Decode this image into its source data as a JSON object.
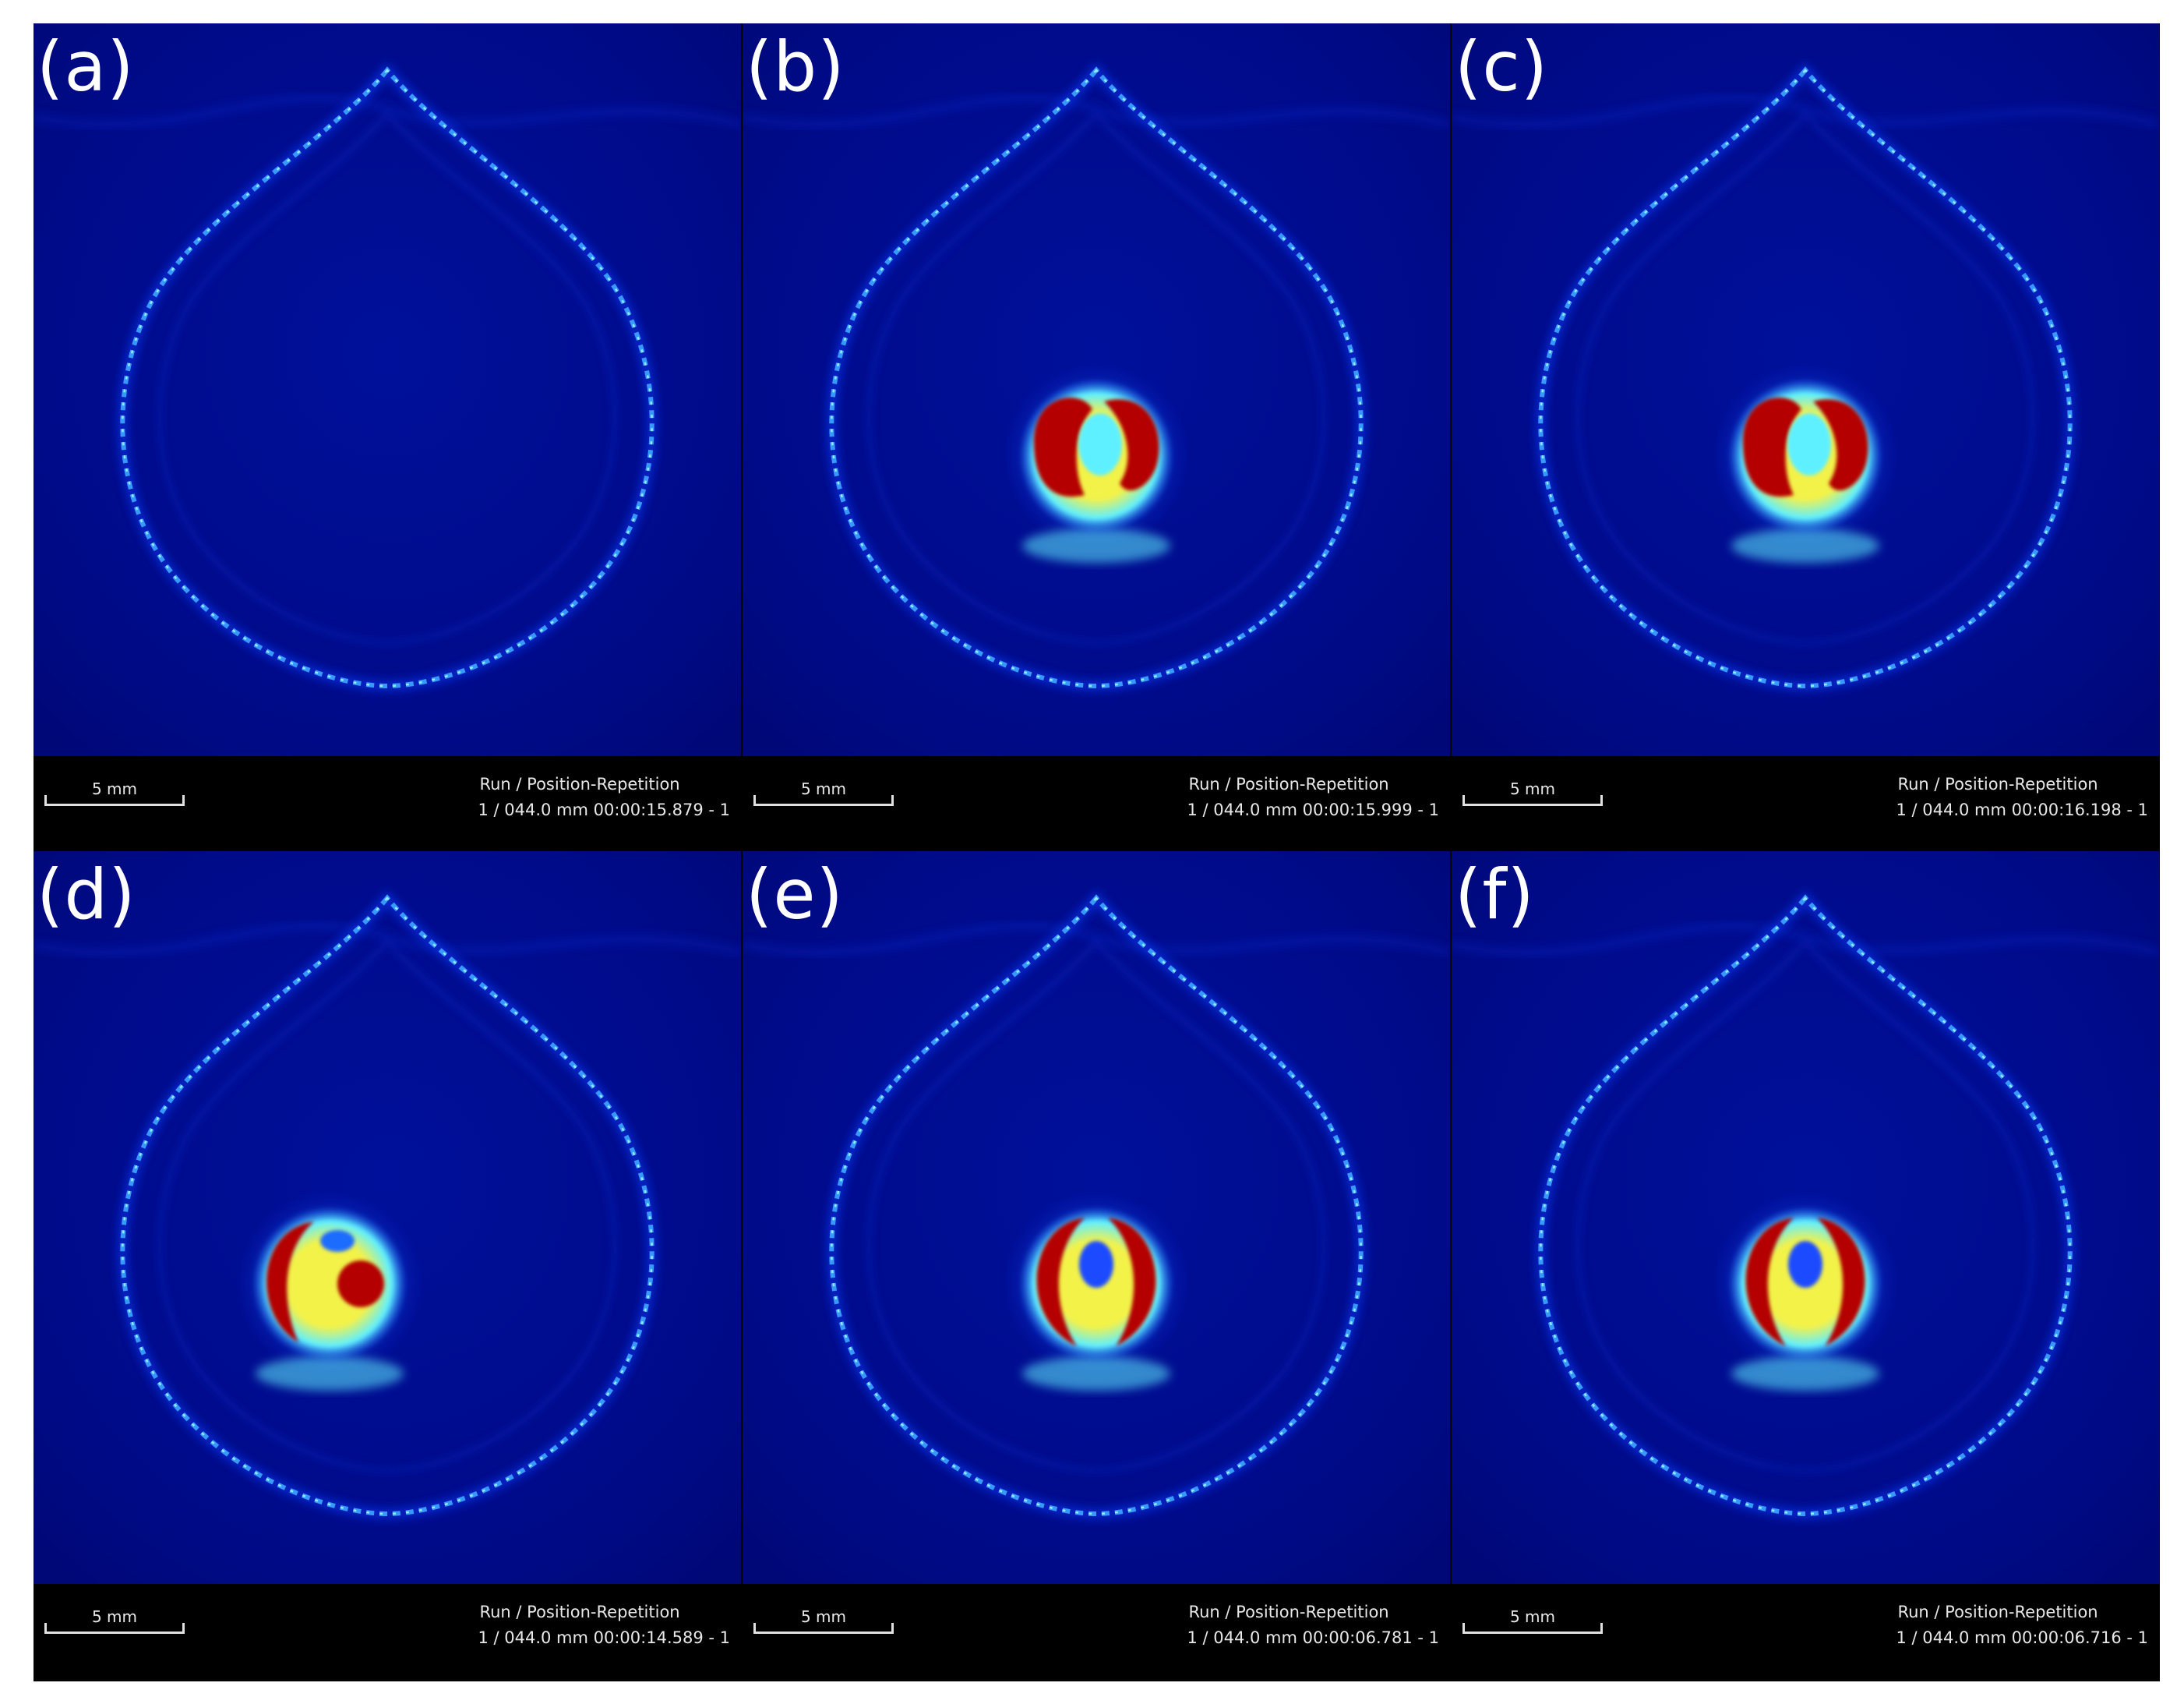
{
  "panels": [
    {
      "label": "(a)",
      "scale_label": "5 mm",
      "meta_title": "Run / Position-Repetition",
      "meta_value": "1 / 044.0 mm 00:00:15.879 - 1",
      "inclusion": "none"
    },
    {
      "label": "(b)",
      "scale_label": "5 mm",
      "meta_title": "Run / Position-Repetition",
      "meta_value": "1 / 044.0 mm 00:00:15.999 - 1",
      "inclusion": "hot-core"
    },
    {
      "label": "(c)",
      "scale_label": "5 mm",
      "meta_title": "Run / Position-Repetition",
      "meta_value": "1 / 044.0 mm 00:00:16.198 - 1",
      "inclusion": "hot-core"
    },
    {
      "label": "(d)",
      "scale_label": "5 mm",
      "meta_title": "Run / Position-Repetition",
      "meta_value": "1 / 044.0 mm 00:00:14.589 - 1",
      "inclusion": "hot-crescent"
    },
    {
      "label": "(e)",
      "scale_label": "5 mm",
      "meta_title": "Run / Position-Repetition",
      "meta_value": "1 / 044.0 mm 00:00:06.781 - 1",
      "inclusion": "ring"
    },
    {
      "label": "(f)",
      "scale_label": "5 mm",
      "meta_title": "Run / Position-Repetition",
      "meta_value": "1 / 044.0 mm 00:00:06.716 - 1",
      "inclusion": "ring"
    }
  ],
  "colors": {
    "background": "#000b8a",
    "outline": "#3aa0ff",
    "core_red": "#b40000",
    "core_yellow": "#f3f24a",
    "core_cyan": "#5ff0ff",
    "bar": "#000000",
    "text": "#e8e8e8"
  }
}
